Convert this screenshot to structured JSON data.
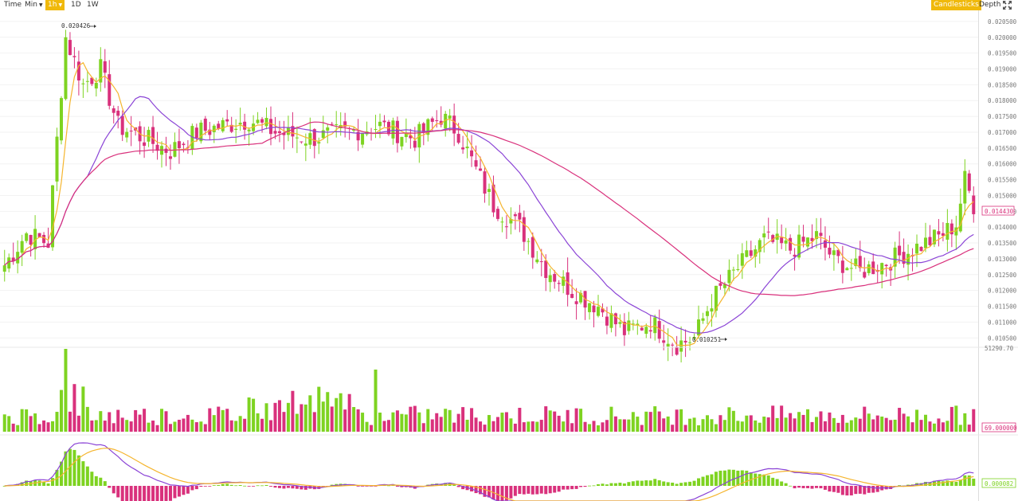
{
  "toolbar": {
    "time_label": "Time",
    "min_label": "Min",
    "h1_label": "1h",
    "d1_label": "1D",
    "w1_label": "1W",
    "candlesticks_label": "Candlesticks",
    "depth_label": "Depth",
    "active_color": "#f0b90b"
  },
  "colors": {
    "up": "#7ed321",
    "down": "#d9317c",
    "ma_fast": "#f5b52e",
    "ma_mid": "#8b44d6",
    "ma_slow": "#d9317c",
    "macd_line": "#8b44d6",
    "signal_line": "#f5b52e",
    "grid": "#f2f2f2"
  },
  "chart_data": {
    "type": "candlestick",
    "y_ticks": [
      "0.020500",
      "0.020000",
      "0.019500",
      "0.019000",
      "0.018500",
      "0.018000",
      "0.017500",
      "0.017000",
      "0.016500",
      "0.016000",
      "0.015500",
      "0.015000",
      "0.014500",
      "0.014000",
      "0.013500",
      "0.013000",
      "0.012500",
      "0.012000",
      "0.011500",
      "0.011000",
      "0.010500"
    ],
    "ylim": [
      0.01023,
      0.02085
    ],
    "current_price_label": "0.014430",
    "high_label": "0.020426",
    "low_label": "0.010251",
    "volume_label": "51290.70",
    "volume_current_label": "69.000000",
    "macd_current_label": "0.000082",
    "close_waypoints": [
      [
        0,
        0.0128
      ],
      [
        5,
        0.0138
      ],
      [
        10,
        0.0135
      ],
      [
        14,
        0.02
      ],
      [
        18,
        0.0185
      ],
      [
        22,
        0.019
      ],
      [
        26,
        0.0172
      ],
      [
        32,
        0.0168
      ],
      [
        38,
        0.0164
      ],
      [
        44,
        0.017
      ],
      [
        50,
        0.0172
      ],
      [
        56,
        0.0174
      ],
      [
        62,
        0.017
      ],
      [
        70,
        0.0168
      ],
      [
        78,
        0.017
      ],
      [
        86,
        0.0172
      ],
      [
        94,
        0.0168
      ],
      [
        100,
        0.0175
      ],
      [
        104,
        0.017
      ],
      [
        108,
        0.0158
      ],
      [
        112,
        0.0147
      ],
      [
        118,
        0.014
      ],
      [
        124,
        0.0127
      ],
      [
        130,
        0.012
      ],
      [
        136,
        0.0115
      ],
      [
        142,
        0.0107
      ],
      [
        148,
        0.011
      ],
      [
        154,
        0.0103
      ],
      [
        158,
        0.0105
      ],
      [
        162,
        0.0117
      ],
      [
        168,
        0.0127
      ],
      [
        174,
        0.0136
      ],
      [
        180,
        0.0133
      ],
      [
        186,
        0.0137
      ],
      [
        190,
        0.013
      ],
      [
        196,
        0.0126
      ],
      [
        202,
        0.0129
      ],
      [
        208,
        0.0133
      ],
      [
        214,
        0.0137
      ],
      [
        218,
        0.0141
      ],
      [
        220,
        0.0155
      ],
      [
        222,
        0.0147
      ]
    ]
  }
}
